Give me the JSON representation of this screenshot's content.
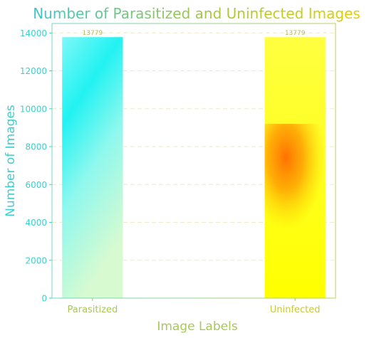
{
  "chart_data": {
    "type": "bar",
    "title": "Number of Parasitized and Uninfected Images",
    "xlabel": "Image Labels",
    "ylabel": "Number of Images",
    "categories": [
      "Parasitized",
      "Uninfected"
    ],
    "values": [
      13779,
      13779
    ],
    "data_labels": [
      "13779",
      "13779"
    ],
    "ylim": [
      0,
      14500
    ],
    "yticks": [
      0,
      2000,
      4000,
      6000,
      8000,
      10000,
      12000,
      14000
    ],
    "grid": true,
    "legend": "none",
    "colors": {
      "title_start": "#3cc8c8",
      "title_end": "#e0d000",
      "axis_left": "#3ccfcf",
      "axis_bottom": "#a8c85a",
      "bar_parasitized_top": "#7ff7f7",
      "bar_parasitized_mid": "#22f0f0",
      "bar_parasitized_bottom": "#c8f8d8",
      "bar_uninfected_main": "#ffff00",
      "bar_uninfected_hot": "#ff7a00"
    }
  }
}
